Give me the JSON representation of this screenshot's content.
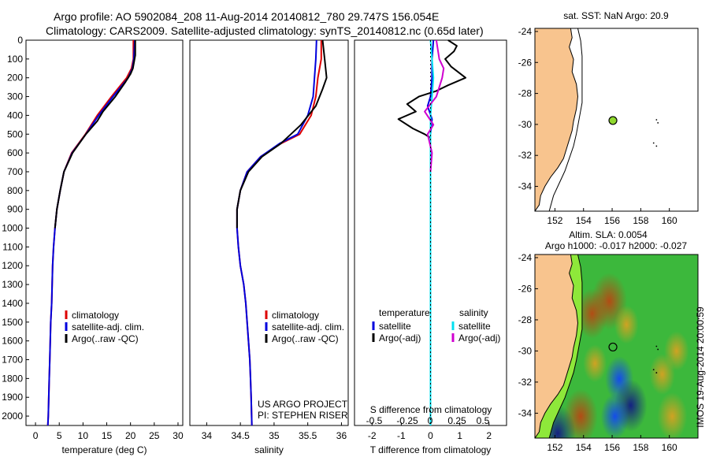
{
  "header": {
    "line1": "Argo profile: AO 5902084_208 11-Aug-2014 20140812_780 29.747S 156.054E",
    "line2": "Climatology: CARS2009. Satellite-adjusted climatology: synTS_20140812.nc (0.65d later)"
  },
  "side_label": "IMOS 19-Aug-2014 20:00:59",
  "colors": {
    "climatology": "#dd0000",
    "satellite": "#0000dd",
    "argo": "#000000",
    "salinity_satellite": "#00e0f0",
    "salinity_argo": "#d000d0",
    "land": "#f8c48e",
    "sea": "#ffffff"
  },
  "chart_data": [
    {
      "type": "line",
      "id": "temperature",
      "xlabel": "temperature (deg C)",
      "ylabel": "",
      "xlim": [
        -2,
        31
      ],
      "ylim": [
        2050,
        0
      ],
      "xticks": [
        0,
        5,
        10,
        15,
        20,
        25,
        30
      ],
      "yticks": [
        0,
        100,
        200,
        300,
        400,
        500,
        600,
        700,
        800,
        900,
        1000,
        1100,
        1200,
        1300,
        1400,
        1500,
        1600,
        1700,
        1800,
        1900,
        2000
      ],
      "legend": [
        "climatology",
        "satellite-adj. clim.",
        "Argo(..raw -QC)"
      ],
      "series": [
        {
          "name": "climatology",
          "color": "#dd0000",
          "x": [
            20.6,
            20.6,
            20.2,
            19.2,
            16,
            13,
            10.5,
            7.6,
            6,
            5.2,
            4.5,
            4.1,
            3.8,
            3.6,
            3.5,
            3.4,
            3.2,
            3.1,
            3,
            2.9,
            2.8,
            2.7,
            2.6
          ],
          "y": [
            0,
            100,
            150,
            200,
            300,
            400,
            500,
            600,
            700,
            800,
            900,
            1000,
            1100,
            1200,
            1300,
            1400,
            1500,
            1600,
            1700,
            1800,
            1900,
            2000,
            2050
          ]
        },
        {
          "name": "satellite-adj. clim.",
          "color": "#0000dd",
          "x": [
            20.9,
            20.7,
            20.4,
            19.5,
            16.3,
            13.3,
            10.6,
            7.7,
            6,
            5.2,
            4.5,
            4.1,
            3.8,
            3.6,
            3.5,
            3.4,
            3.2,
            3.1,
            3,
            2.9,
            2.8,
            2.7,
            2.6
          ],
          "y": [
            0,
            100,
            150,
            200,
            300,
            400,
            500,
            600,
            700,
            800,
            900,
            1000,
            1100,
            1200,
            1300,
            1400,
            1500,
            1600,
            1700,
            1800,
            1900,
            2000,
            2050
          ]
        },
        {
          "name": "Argo(..raw -QC)",
          "color": "#000000",
          "x": [
            21,
            21,
            20.5,
            20,
            19,
            16.8,
            14.2,
            13,
            10.6,
            7.8,
            6,
            5.2,
            4.5,
            4.1
          ],
          "y": [
            0,
            80,
            150,
            180,
            220,
            300,
            380,
            430,
            500,
            600,
            700,
            800,
            900,
            1000
          ]
        }
      ]
    },
    {
      "type": "line",
      "id": "salinity",
      "xlabel": "salinity",
      "ylabel": "",
      "xlim": [
        33.75,
        36.1
      ],
      "ylim": [
        2050,
        0
      ],
      "xticks": [
        34,
        34.5,
        35,
        35.5,
        36
      ],
      "legend": [
        "climatology",
        "satellite-adj. clim.",
        "Argo(..raw -QC)"
      ],
      "annotation": [
        "US ARGO PROJECT",
        "PI: STEPHEN RISER"
      ],
      "series": [
        {
          "name": "climatology",
          "color": "#dd0000",
          "x": [
            35.7,
            35.7,
            35.65,
            35.62,
            35.55,
            35.38,
            35.1,
            34.8,
            34.6,
            34.5,
            34.45,
            34.45,
            34.47,
            34.5,
            34.55,
            34.58,
            34.6,
            34.62,
            34.64,
            34.65,
            34.66,
            34.67
          ],
          "y": [
            0,
            100,
            200,
            300,
            400,
            500,
            550,
            620,
            700,
            800,
            900,
            1000,
            1100,
            1200,
            1300,
            1400,
            1500,
            1600,
            1700,
            1800,
            1900,
            2050
          ]
        },
        {
          "name": "satellite-adj. clim.",
          "color": "#0000dd",
          "x": [
            35.63,
            35.62,
            35.6,
            35.58,
            35.5,
            35.35,
            35.08,
            34.8,
            34.6,
            34.5,
            34.45,
            34.45,
            34.47,
            34.5,
            34.55,
            34.58,
            34.6,
            34.62,
            34.64,
            34.65,
            34.66,
            34.67
          ],
          "y": [
            0,
            100,
            200,
            300,
            400,
            500,
            550,
            620,
            700,
            800,
            900,
            1000,
            1100,
            1200,
            1300,
            1400,
            1500,
            1600,
            1700,
            1800,
            1900,
            2050
          ]
        },
        {
          "name": "Argo(..raw -QC)",
          "color": "#000000",
          "x": [
            35.72,
            35.75,
            35.78,
            35.72,
            35.62,
            35.4,
            35.1,
            34.82,
            34.62,
            34.5,
            34.45,
            34.45
          ],
          "y": [
            0,
            100,
            200,
            260,
            350,
            450,
            550,
            620,
            700,
            800,
            900,
            1000
          ]
        }
      ]
    },
    {
      "type": "line",
      "id": "difference",
      "xlabel": "T difference from climatology",
      "xlabel_top": "S difference from climatology",
      "ylabel": "",
      "xlim": [
        -2.6,
        2.6
      ],
      "ylim": [
        2050,
        0
      ],
      "xticks": [
        -2,
        -1,
        0,
        1,
        2
      ],
      "xticks_salinity": [
        "-0.5",
        "-0.25",
        "0",
        "0.25",
        "0.5"
      ],
      "legend_temperature_title": "temperature",
      "legend_salinity_title": "salinity",
      "legend": [
        "satellite",
        "Argo(-adj)",
        "satellite",
        "Argo(-adj)"
      ],
      "series": [
        {
          "name": "temperature satellite",
          "color": "#0000dd",
          "x": [
            0.1,
            0.05,
            0.05,
            0,
            -0.1,
            0.05,
            0,
            0,
            0,
            0,
            0
          ],
          "y": [
            0,
            100,
            200,
            300,
            350,
            420,
            500,
            600,
            800,
            1200,
            2050
          ]
        },
        {
          "name": "temperature Argo(-adj)",
          "color": "#000000",
          "x": [
            0.6,
            0.9,
            0.8,
            0.5,
            0.7,
            1.2,
            0.6,
            0.2,
            -0.4,
            -0.8,
            -0.5,
            -1.1,
            -0.6,
            -0.2,
            0
          ],
          "y": [
            0,
            30,
            60,
            100,
            140,
            200,
            240,
            270,
            300,
            340,
            380,
            420,
            470,
            500,
            520
          ]
        },
        {
          "name": "salinity satellite",
          "color": "#00e0f0",
          "x": [
            0,
            0.05,
            0.1,
            0.05,
            0,
            0,
            0,
            0,
            0
          ],
          "y": [
            0,
            100,
            200,
            300,
            400,
            500,
            600,
            1000,
            2050
          ]
        },
        {
          "name": "salinity Argo(-adj)",
          "color": "#d000d0",
          "x": [
            0.2,
            0.3,
            0.45,
            0.4,
            0.2,
            -0.2,
            0.1,
            -0.1,
            0.05,
            0
          ],
          "y": [
            0,
            100,
            150,
            200,
            300,
            380,
            450,
            500,
            600,
            700
          ]
        }
      ]
    },
    {
      "type": "map",
      "id": "sst",
      "title": "sat. SST: NaN Argo: 20.9",
      "xlim": [
        150.6,
        162
      ],
      "ylim": [
        -35.6,
        -23.8
      ],
      "xticks": [
        152,
        154,
        156,
        158,
        160
      ],
      "yticks": [
        -24,
        -26,
        -28,
        -30,
        -32,
        -34
      ],
      "argo_position": {
        "lon": 156.054,
        "lat": -29.747,
        "color": "#8fd82e"
      }
    },
    {
      "type": "map",
      "id": "sla",
      "title": "Altim. SLA: 0.0054",
      "subtitle": "Argo h1000: -0.017 h2000: -0.027",
      "xlim": [
        150.6,
        162
      ],
      "ylim": [
        -35.6,
        -23.8
      ],
      "xticks": [
        152,
        154,
        156,
        158,
        160
      ],
      "yticks": [
        -24,
        -26,
        -28,
        -30,
        -32,
        -34
      ],
      "argo_position": {
        "lon": 156.054,
        "lat": -29.747
      },
      "background_color": "#3cb83c",
      "anomalies": [
        {
          "lon": 155.8,
          "lat": -26.8,
          "value": 0.5
        },
        {
          "lon": 154.6,
          "lat": -27.6,
          "value": 0.35
        },
        {
          "lon": 157,
          "lat": -28.3,
          "value": 0.1
        },
        {
          "lon": 154.8,
          "lat": -30.8,
          "value": 0.08
        },
        {
          "lon": 160.5,
          "lat": -30,
          "value": 0.12
        },
        {
          "lon": 156.5,
          "lat": -31.8,
          "value": -0.25
        },
        {
          "lon": 157.3,
          "lat": -33.5,
          "value": -0.4
        },
        {
          "lon": 156.2,
          "lat": -34.2,
          "value": -0.25
        },
        {
          "lon": 153.8,
          "lat": -34.2,
          "value": 0.45
        },
        {
          "lon": 152.2,
          "lat": -35.3,
          "value": -0.5
        },
        {
          "lon": 160.2,
          "lat": -34.2,
          "value": 0.3
        },
        {
          "lon": 159.5,
          "lat": -31.5,
          "value": 0.15
        }
      ]
    }
  ]
}
